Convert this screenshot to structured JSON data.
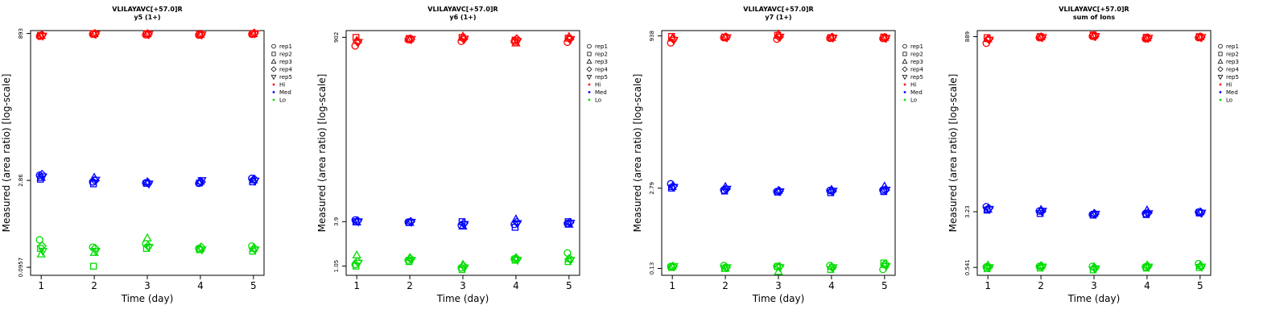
{
  "chart_data": [
    {
      "type": "scatter",
      "title": "VLILAYAVC[+57.0]R",
      "subtitle": "y5 (1+)",
      "xlabel": "Time (day)",
      "ylabel": "Measured (area ratio) [log-scale]",
      "y_scale": "log",
      "xlim": [
        0.8,
        5.2
      ],
      "ylim": [
        0.07,
        1000
      ],
      "x_ticks": [
        "1",
        "2",
        "3",
        "4",
        "5"
      ],
      "y_ticks": [
        "0.0957",
        "2.86",
        "893"
      ],
      "legend": {
        "position": "right",
        "markers": [
          "rep1",
          "rep2",
          "rep3",
          "rep4",
          "rep5"
        ],
        "levels": [
          "Hi",
          "Med",
          "Lo"
        ]
      },
      "series": [
        {
          "name": "Hi",
          "color": "#ff0000",
          "points": {
            "rep1": [
              800,
              870,
              850,
              840,
              870
            ],
            "rep2": [
              830,
              890,
              890,
              870,
              893
            ],
            "rep3": [
              820,
              880,
              880,
              860,
              880
            ],
            "rep4": [
              840,
              880,
              870,
              860,
              900
            ],
            "rep5": [
              810,
              870,
              860,
              850,
              890
            ]
          }
        },
        {
          "name": "Med",
          "color": "#0000ff",
          "points": {
            "rep1": [
              3.5,
              2.7,
              2.6,
              2.55,
              3.1
            ],
            "rep2": [
              3.0,
              2.5,
              2.55,
              2.6,
              2.7
            ],
            "rep3": [
              3.2,
              3.2,
              2.7,
              2.75,
              2.9
            ],
            "rep4": [
              3.6,
              2.85,
              2.6,
              2.7,
              3.0
            ],
            "rep5": [
              3.3,
              2.9,
              2.5,
              2.85,
              2.8
            ]
          }
        },
        {
          "name": "Lo",
          "color": "#00dd00",
          "points": {
            "rep1": [
              0.28,
              0.21,
              0.24,
              0.2,
              0.22
            ],
            "rep2": [
              0.2,
              0.1,
              0.2,
              0.19,
              0.18
            ],
            "rep3": [
              0.16,
              0.17,
              0.3,
              0.2,
              0.2
            ],
            "rep4": [
              0.22,
              0.2,
              0.22,
              0.21,
              0.2
            ],
            "rep5": [
              0.18,
              0.18,
              0.21,
              0.19,
              0.19
            ]
          }
        }
      ]
    },
    {
      "type": "scatter",
      "title": "VLILAYAVC[+57.0]R",
      "subtitle": "y6 (1+)",
      "xlabel": "Time (day)",
      "ylabel": "Measured (area ratio) [log-scale]",
      "y_scale": "log",
      "xlim": [
        0.8,
        5.2
      ],
      "ylim": [
        0.8,
        1100
      ],
      "x_ticks": [
        "1",
        "2",
        "3",
        "4",
        "5"
      ],
      "y_ticks": [
        "1.05",
        "3.9",
        "902"
      ],
      "legend": {
        "position": "right",
        "markers": [
          "rep1",
          "rep2",
          "rep3",
          "rep4",
          "rep5"
        ],
        "levels": [
          "Hi",
          "Med",
          "Lo"
        ]
      },
      "series": [
        {
          "name": "Hi",
          "color": "#ff0000",
          "points": {
            "rep1": [
              700,
              840,
              800,
              800,
              780
            ],
            "rep2": [
              900,
              870,
              900,
              830,
              880
            ],
            "rep3": [
              820,
              860,
              930,
              760,
              920
            ],
            "rep4": [
              790,
              850,
              860,
              860,
              860
            ],
            "rep5": [
              780,
              850,
              860,
              800,
              850
            ]
          }
        },
        {
          "name": "Med",
          "color": "#0000ff",
          "points": {
            "rep1": [
              4.1,
              3.85,
              3.5,
              3.6,
              3.7
            ],
            "rep2": [
              3.9,
              3.8,
              3.9,
              3.3,
              3.9
            ],
            "rep3": [
              3.85,
              3.8,
              3.4,
              4.2,
              3.6
            ],
            "rep4": [
              4.0,
              3.9,
              3.7,
              3.85,
              3.8
            ],
            "rep5": [
              3.9,
              3.85,
              3.6,
              3.7,
              3.75
            ]
          }
        },
        {
          "name": "Lo",
          "color": "#00dd00",
          "points": {
            "rep1": [
              1.1,
              1.25,
              1.0,
              1.3,
              1.55
            ],
            "rep2": [
              1.05,
              1.2,
              0.95,
              1.25,
              1.2
            ],
            "rep3": [
              1.45,
              1.35,
              1.1,
              1.35,
              1.3
            ],
            "rep4": [
              1.2,
              1.3,
              1.05,
              1.3,
              1.3
            ],
            "rep5": [
              1.15,
              1.25,
              1.0,
              1.25,
              1.25
            ]
          }
        }
      ]
    },
    {
      "type": "scatter",
      "title": "VLILAYAVC[+57.0]R",
      "subtitle": "y7 (1+)",
      "xlabel": "Time (day)",
      "ylabel": "Measured (area ratio) [log-scale]",
      "y_scale": "log",
      "xlim": [
        0.8,
        5.2
      ],
      "ylim": [
        0.1,
        1150
      ],
      "x_ticks": [
        "1",
        "2",
        "3",
        "4",
        "5"
      ],
      "y_ticks": [
        "0.13",
        "2.79",
        "938"
      ],
      "legend": {
        "position": "right",
        "markers": [
          "rep1",
          "rep2",
          "rep3",
          "rep4",
          "rep5"
        ],
        "levels": [
          "Hi",
          "Med",
          "Lo"
        ]
      },
      "series": [
        {
          "name": "Hi",
          "color": "#ff0000",
          "points": {
            "rep1": [
              720,
              880,
              830,
              860,
              850
            ],
            "rep2": [
              920,
              900,
              960,
              880,
              900
            ],
            "rep3": [
              860,
              900,
              1000,
              880,
              880
            ],
            "rep4": [
              840,
              890,
              900,
              890,
              870
            ],
            "rep5": [
              800,
              880,
              900,
              870,
              860
            ]
          }
        },
        {
          "name": "Med",
          "color": "#0000ff",
          "points": {
            "rep1": [
              3.3,
              2.6,
              2.45,
              2.55,
              2.6
            ],
            "rep2": [
              2.8,
              2.5,
              2.4,
              2.35,
              2.45
            ],
            "rep3": [
              2.95,
              2.95,
              2.55,
              2.65,
              3.0
            ],
            "rep4": [
              3.0,
              2.7,
              2.5,
              2.5,
              2.6
            ],
            "rep5": [
              2.9,
              2.7,
              2.45,
              2.5,
              2.6
            ]
          }
        },
        {
          "name": "Lo",
          "color": "#00dd00",
          "points": {
            "rep1": [
              0.14,
              0.145,
              0.14,
              0.145,
              0.125
            ],
            "rep2": [
              0.135,
              0.13,
              0.14,
              0.125,
              0.16
            ],
            "rep3": [
              0.14,
              0.13,
              0.115,
              0.14,
              0.15
            ],
            "rep4": [
              0.14,
              0.135,
              0.14,
              0.135,
              0.155
            ],
            "rep5": [
              0.14,
              0.135,
              0.135,
              0.135,
              0.14
            ]
          }
        }
      ]
    },
    {
      "type": "scatter",
      "title": "VLILAYAVC[+57.0]R",
      "subtitle": "sum of Ions",
      "xlabel": "Time (day)",
      "ylabel": "Measured (area ratio) [log-scale]",
      "y_scale": "log",
      "xlim": [
        0.8,
        5.2
      ],
      "ylim": [
        0.42,
        1080
      ],
      "x_ticks": [
        "1",
        "2",
        "3",
        "4",
        "5"
      ],
      "y_ticks": [
        "0.541",
        "3.23",
        "889"
      ],
      "legend": {
        "position": "right",
        "markers": [
          "rep1",
          "rep2",
          "rep3",
          "rep4",
          "rep5"
        ],
        "levels": [
          "Hi",
          "Med",
          "Lo"
        ]
      },
      "series": [
        {
          "name": "Hi",
          "color": "#ff0000",
          "points": {
            "rep1": [
              720,
              860,
              900,
              830,
              860
            ],
            "rep2": [
              860,
              890,
              940,
              870,
              890
            ],
            "rep3": [
              830,
              880,
              920,
              850,
              880
            ],
            "rep4": [
              820,
              870,
              900,
              850,
              870
            ],
            "rep5": [
              800,
              870,
              900,
              850,
              870
            ]
          }
        },
        {
          "name": "Med",
          "color": "#0000ff",
          "points": {
            "rep1": [
              3.8,
              3.3,
              2.95,
              3.05,
              3.2
            ],
            "rep2": [
              3.4,
              3.05,
              2.9,
              2.95,
              3.1
            ],
            "rep3": [
              3.5,
              3.45,
              3.05,
              3.4,
              3.2
            ],
            "rep4": [
              3.6,
              3.3,
              3.0,
              3.1,
              3.15
            ],
            "rep5": [
              3.5,
              3.3,
              3.0,
              3.05,
              3.1
            ]
          }
        },
        {
          "name": "Lo",
          "color": "#00dd00",
          "points": {
            "rep1": [
              0.55,
              0.56,
              0.56,
              0.55,
              0.61
            ],
            "rep2": [
              0.52,
              0.53,
              0.5,
              0.53,
              0.54
            ],
            "rep3": [
              0.58,
              0.57,
              0.55,
              0.58,
              0.57
            ],
            "rep4": [
              0.55,
              0.56,
              0.53,
              0.56,
              0.56
            ],
            "rep5": [
              0.54,
              0.55,
              0.52,
              0.55,
              0.55
            ]
          }
        }
      ]
    }
  ]
}
